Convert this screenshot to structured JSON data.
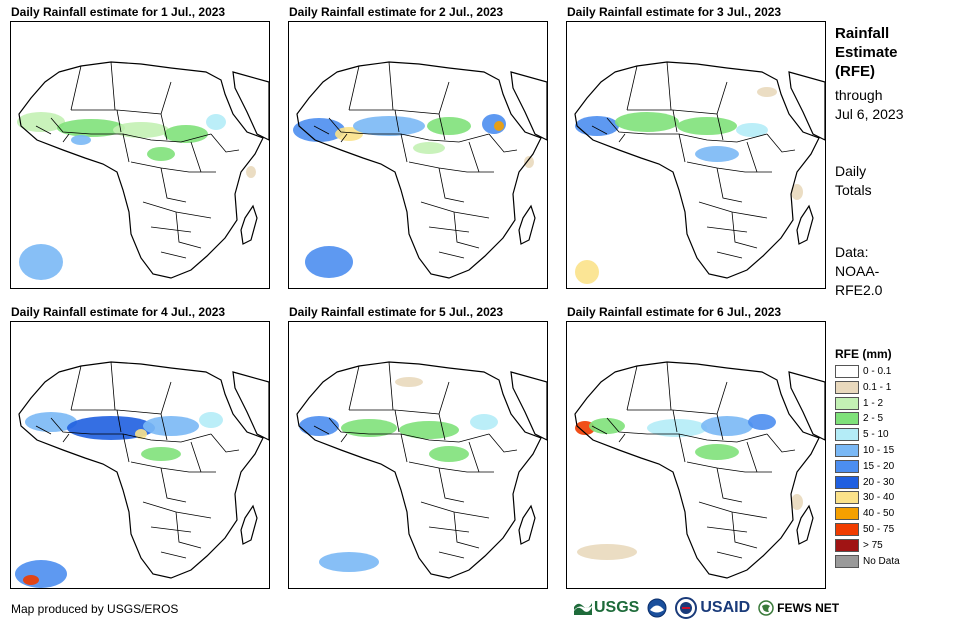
{
  "panels": [
    {
      "title": "Daily Rainfall estimate for 1 Jul., 2023"
    },
    {
      "title": "Daily Rainfall estimate for 2 Jul., 2023"
    },
    {
      "title": "Daily Rainfall estimate for 3 Jul., 2023"
    },
    {
      "title": "Daily Rainfall estimate for 4 Jul., 2023"
    },
    {
      "title": "Daily Rainfall estimate for 5 Jul., 2023"
    },
    {
      "title": "Daily Rainfall estimate for 6 Jul., 2023"
    }
  ],
  "sidebar": {
    "title_lines": [
      "Rainfall",
      "Estimate",
      "(RFE)"
    ],
    "through_lines": [
      "through",
      "Jul 6, 2023"
    ],
    "totals_lines": [
      "Daily",
      "Totals"
    ],
    "data_lines": [
      "Data:",
      "NOAA-",
      "RFE2.0"
    ]
  },
  "legend": {
    "title": "RFE (mm)",
    "items": [
      {
        "label": "0 - 0.1",
        "color": "#ffffff"
      },
      {
        "label": "0.1 - 1",
        "color": "#e9d9bd"
      },
      {
        "label": "1 - 2",
        "color": "#c3f1b4"
      },
      {
        "label": "2 - 5",
        "color": "#7fe17a"
      },
      {
        "label": "5 - 10",
        "color": "#b4ecf7"
      },
      {
        "label": "10 - 15",
        "color": "#7ab8f5"
      },
      {
        "label": "15 - 20",
        "color": "#4c8ef0"
      },
      {
        "label": "20 - 30",
        "color": "#1f5fe0"
      },
      {
        "label": "30 - 40",
        "color": "#fbe28a"
      },
      {
        "label": "40 - 50",
        "color": "#f5a000"
      },
      {
        "label": "50 - 75",
        "color": "#f03c00"
      },
      {
        "label": "> 75",
        "color": "#a01414"
      },
      {
        "label": "No Data",
        "color": "#9a9a9a"
      }
    ]
  },
  "footer": {
    "credit": "Map produced by USGS/EROS",
    "logos": [
      "USGS",
      "USAID",
      "FEWS NET"
    ]
  }
}
